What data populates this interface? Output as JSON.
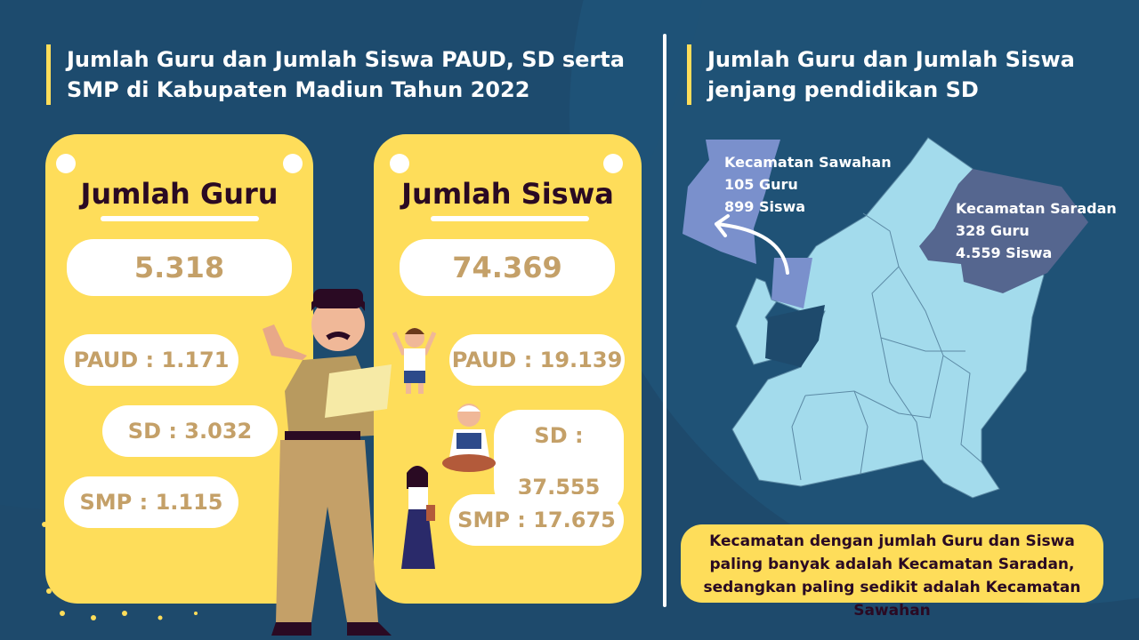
{
  "colors": {
    "background": "#1e4a6c",
    "accent_yellow": "#fedd5a",
    "number_text": "#c4a068",
    "map_base": "#a3dbec",
    "sawahan": "#7a90cc",
    "saradan": "#55668f"
  },
  "left": {
    "title_line1": "Jumlah Guru dan Jumlah Siswa PAUD, SD serta",
    "title_line2": "SMP di Kabupaten Madiun Tahun 2022",
    "guru": {
      "title": "Jumlah Guru",
      "total": "5.318",
      "paud": "PAUD : 1.171",
      "sd": "SD : 3.032",
      "smp": "SMP : 1.115"
    },
    "siswa": {
      "title": "Jumlah Siswa",
      "total": "74.369",
      "paud": "PAUD : 19.139",
      "sd": "SD : 37.555",
      "smp": "SMP : 17.675"
    }
  },
  "right": {
    "title_line1": "Jumlah Guru dan Jumlah Siswa",
    "title_line2": "jenjang pendidikan SD",
    "sawahan": {
      "name": "Kecamatan Sawahan",
      "guru": "105 Guru",
      "siswa": "899 Siswa"
    },
    "saradan": {
      "name": "Kecamatan Saradan",
      "guru": "328 Guru",
      "siswa": "4.559 Siswa"
    },
    "note": "Kecamatan dengan jumlah Guru dan Siswa paling banyak adalah Kecamatan Saradan, sedangkan paling sedikit adalah Kecamatan Sawahan"
  }
}
